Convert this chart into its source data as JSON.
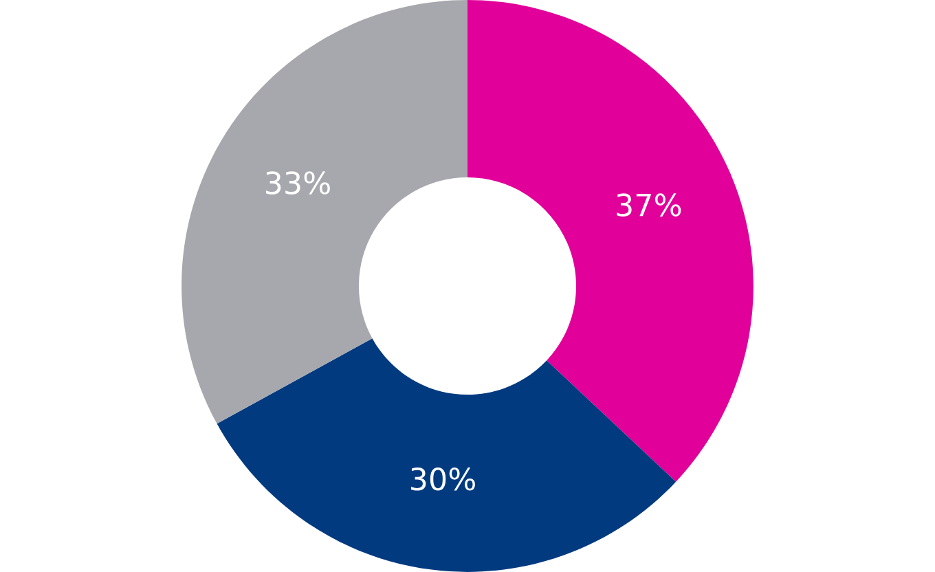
{
  "chart_data": {
    "type": "donut",
    "categories": [
      null,
      null,
      null
    ],
    "values": [
      37,
      30,
      33
    ],
    "colors": [
      "#e2009a",
      "#023a80",
      "#a7a8ad"
    ],
    "value_labels": [
      "37%",
      "30%",
      "33%"
    ],
    "legend": false
  }
}
